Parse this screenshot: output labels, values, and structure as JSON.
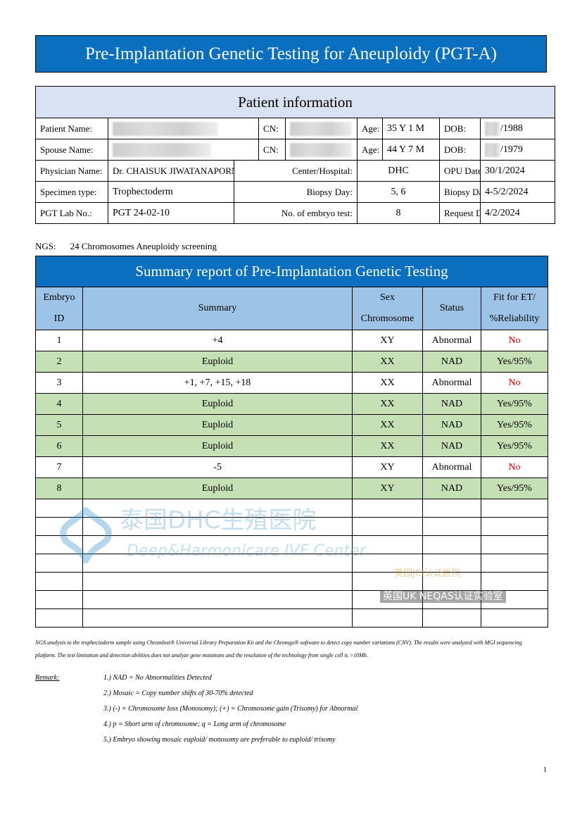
{
  "title": "Pre-Implantation Genetic Testing for Aneuploidy (PGT-A)",
  "patient": {
    "heading": "Patient information",
    "patient_name_label": "Patient Name:",
    "cn_label": "CN:",
    "age_label": "Age:",
    "dob_label": "DOB:",
    "patient_age": "35 Y 1 M",
    "patient_dob": "/1988",
    "spouse_name_label": "Spouse Name:",
    "spouse_age": "44 Y 7 M",
    "spouse_dob": "/1979",
    "physician_label": "Physician Name:",
    "physician": "Dr. CHAISUK JIWATANAPORN",
    "center_label": "Center/Hospital:",
    "center": "DHC",
    "opu_label": "OPU Date:",
    "opu": "30/1/2024",
    "specimen_label": "Specimen type:",
    "specimen": "Trophectoderm",
    "biopsy_day_label": "Biopsy Day:",
    "biopsy_day": "5, 6",
    "biopsy_date_label": "Biopsy Date:",
    "biopsy_date": "4-5/2/2024",
    "lab_label": "PGT Lab No.:",
    "lab": "PGT 24-02-10",
    "embryo_count_label": "No. of embryo test:",
    "embryo_count": "8",
    "request_label": "Request Date:",
    "request": "4/2/2024"
  },
  "ngs": {
    "label": "NGS:",
    "value": "24 Chromosomes Aneuploidy screening"
  },
  "summary": {
    "heading": "Summary report of Pre-Implantation Genetic Testing",
    "columns": [
      "Embryo ID",
      "Summary",
      "Sex Chromosome",
      "Status",
      "Fit for ET/ %Reliability"
    ],
    "rows": [
      {
        "id": "1",
        "summary": "+4",
        "sex": "XY",
        "status": "Abnormal",
        "fit": "No"
      },
      {
        "id": "2",
        "summary": "Euploid",
        "sex": "XX",
        "status": "NAD",
        "fit": "Yes/95%"
      },
      {
        "id": "3",
        "summary": "+1, +7, +15, +18",
        "sex": "XX",
        "status": "Abnormal",
        "fit": "No"
      },
      {
        "id": "4",
        "summary": "Euploid",
        "sex": "XX",
        "status": "NAD",
        "fit": "Yes/95%"
      },
      {
        "id": "5",
        "summary": "Euploid",
        "sex": "XX",
        "status": "NAD",
        "fit": "Yes/95%"
      },
      {
        "id": "6",
        "summary": "Euploid",
        "sex": "XX",
        "status": "NAD",
        "fit": "Yes/95%"
      },
      {
        "id": "7",
        "summary": "-5",
        "sex": "XY",
        "status": "Abnormal",
        "fit": "No"
      },
      {
        "id": "8",
        "summary": "Euploid",
        "sex": "XY",
        "status": "NAD",
        "fit": "Yes/95%"
      }
    ]
  },
  "method_note": [
    "NGS analysis to the trophectoderm sample using ChromInst® Universal Library Preparation Kit and the Chromgo® software to detect copy number variations (CNV). The results were analyzed with MGI sequencing",
    "platform. The test limitation and detection abilities does not analyze gene mutations and the resolution of the technology from single cell is >10Mb."
  ],
  "remark": {
    "label": "Remark:",
    "items": [
      "1.) NAD = No Abnormalities Detected",
      "2.) Mosaic = Copy number shifts of 30-70% detected",
      "3.) (-) = Chromosome loss (Monosomy); (+) = Chromosome gain (Trisomy) for Abnormal",
      "4.) p = Short arm of chromosome; q = Long arm of chromosome",
      "5.) Embryo showing mosaic euploid/ monosomy are preferable to euploid/ trisomy"
    ]
  },
  "watermark": {
    "hospital": "泰国DHC生殖医院",
    "english": "Deep&Harmonicare IVF Center",
    "jci": "英国JCI认证医院",
    "neqas": "英国UK NEQAS认证实验室"
  },
  "page_number": "1",
  "colors": {
    "header_blue": "#0b6fbf",
    "column_header": "#9dc3e6",
    "row_green": "#c5e0b4",
    "patient_header": "#d9e2f3",
    "no_red": "#e00000"
  }
}
